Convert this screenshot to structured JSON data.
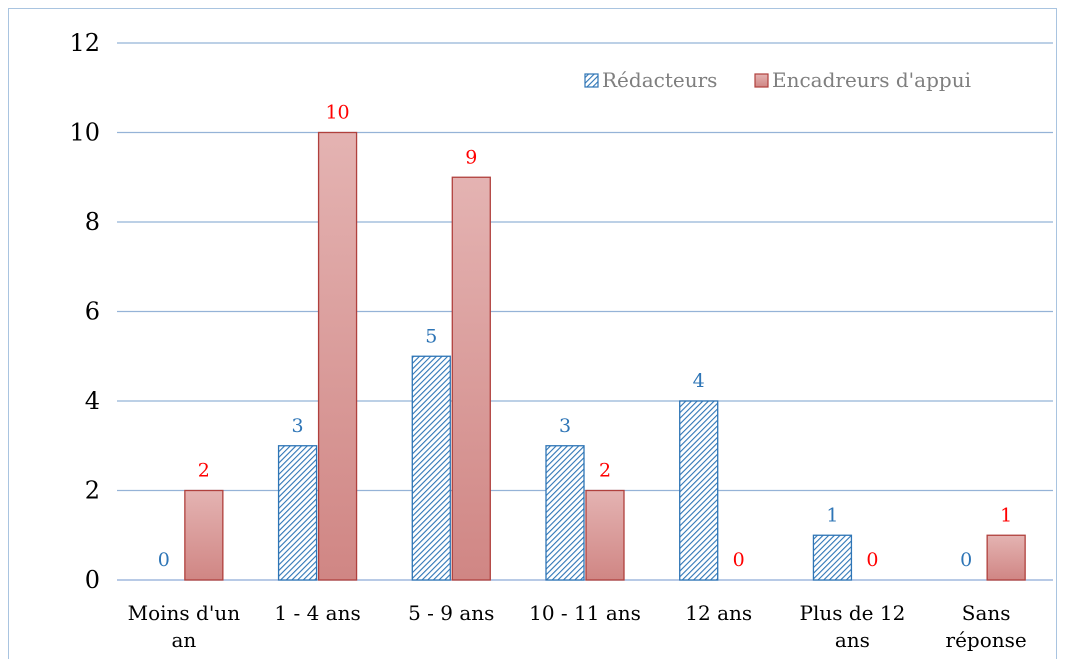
{
  "chart_data": {
    "type": "bar",
    "title": "",
    "xlabel": "",
    "ylabel": "",
    "ylim": [
      0,
      12
    ],
    "yticks": [
      0,
      2,
      4,
      6,
      8,
      10,
      12
    ],
    "grid": true,
    "legend_position": "top-right",
    "categories": [
      [
        "Moins d'un",
        "an"
      ],
      [
        "1 - 4  ans"
      ],
      [
        "5 - 9 ans"
      ],
      [
        "10 - 11 ans"
      ],
      [
        "12 ans"
      ],
      [
        "Plus de 12",
        "ans"
      ],
      [
        "Sans",
        "réponse"
      ]
    ],
    "series": [
      {
        "name": "Rédacteurs",
        "values": [
          0,
          3,
          5,
          3,
          4,
          1,
          0
        ],
        "color": "#2e75b6",
        "label_color": "#2e75b6",
        "pattern": "hatched"
      },
      {
        "name": "Encadreurs d'appui",
        "values": [
          2,
          10,
          9,
          2,
          0,
          0,
          1
        ],
        "color": "#c0504d",
        "label_color": "#ff0000",
        "pattern": "gradient"
      }
    ]
  }
}
